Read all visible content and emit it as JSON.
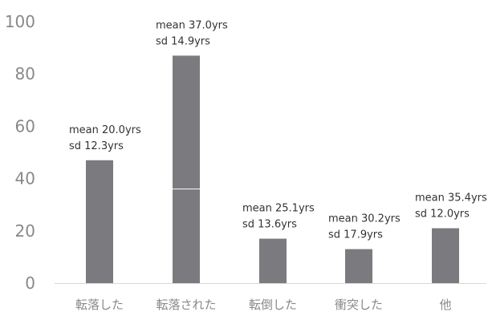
{
  "chart_data": {
    "type": "bar",
    "title": "",
    "xlabel": "",
    "ylabel": "",
    "ylim": [
      0,
      100
    ],
    "yticks": [
      0,
      20,
      40,
      60,
      80,
      100
    ],
    "grid": false,
    "categories": [
      "転落した",
      "転落された",
      "転倒した",
      "衝突した",
      "他"
    ],
    "values": [
      47,
      87,
      17,
      13,
      21
    ],
    "stack_breaks": [
      null,
      36,
      null,
      null,
      null
    ],
    "annotations": [
      {
        "line1": "mean 20.0yrs",
        "line2": "sd 12.3yrs"
      },
      {
        "line1": "mean 37.0yrs",
        "line2": "sd 14.9yrs"
      },
      {
        "line1": "mean 25.1yrs",
        "line2": "sd 13.6yrs"
      },
      {
        "line1": "mean 30.2yrs",
        "line2": "sd 17.9yrs"
      },
      {
        "line1": "mean 35.4yrs",
        "line2": "sd 12.0yrs"
      }
    ],
    "colors": {
      "bar": "#7b7b7f",
      "axis_text": "#888888",
      "annotation_text": "#333333",
      "baseline": "#d9d9d9",
      "divider": "#ffffff"
    }
  }
}
